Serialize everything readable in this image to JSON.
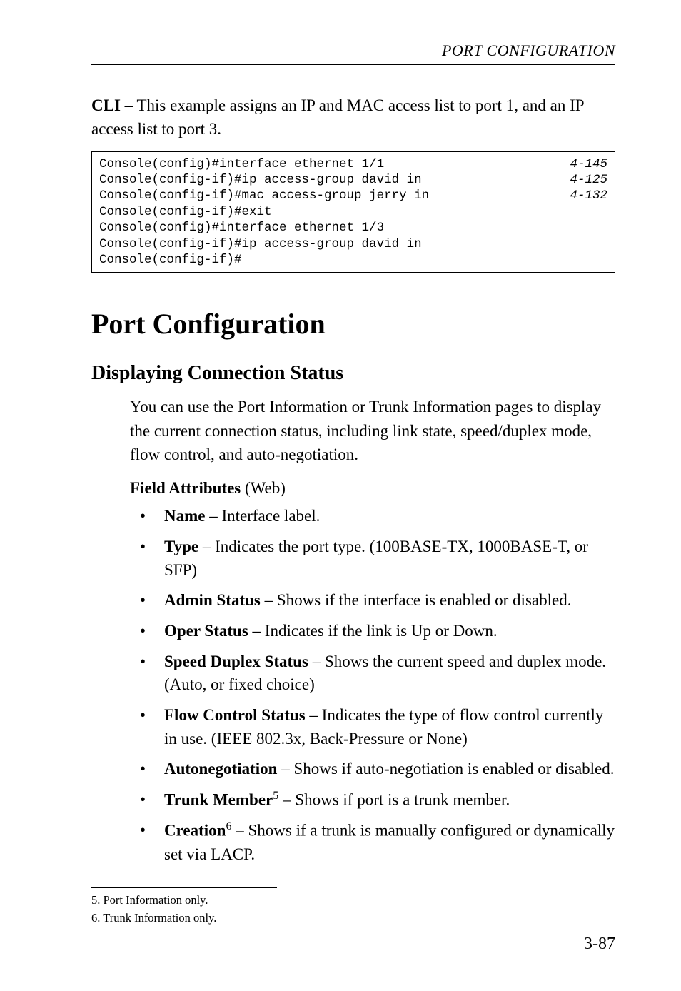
{
  "running_head": "PORT CONFIGURATION",
  "intro_para_prefix_bold": "CLI",
  "intro_para_rest": " – This example assigns an IP and MAC access list to port 1, and an IP access list to port 3.",
  "code": {
    "lines": [
      {
        "left": "Console(config)#interface ethernet 1/1",
        "right": "4-145"
      },
      {
        "left": "Console(config-if)#ip access-group david in",
        "right": "4-125"
      },
      {
        "left": "Console(config-if)#mac access-group jerry in",
        "right": "4-132"
      },
      {
        "left": "Console(config-if)#exit",
        "right": ""
      },
      {
        "left": "Console(config)#interface ethernet 1/3",
        "right": ""
      },
      {
        "left": "Console(config-if)#ip access-group david in",
        "right": ""
      },
      {
        "left": "Console(config-if)#",
        "right": ""
      }
    ]
  },
  "h1": "Port Configuration",
  "h2": "Displaying Connection Status",
  "sub_para": "You can use the Port Information or Trunk Information pages to display the current connection status, including link state, speed/duplex mode, flow control, and auto-negotiation.",
  "field_attr_bold": "Field Attributes",
  "field_attr_rest": " (Web)",
  "bullets": [
    {
      "term": "Name",
      "desc": " – Interface label."
    },
    {
      "term": "Type",
      "desc": " – Indicates the port type. (100BASE-TX, 1000BASE-T, or SFP)"
    },
    {
      "term": "Admin Status",
      "desc": " – Shows if the interface is enabled or disabled."
    },
    {
      "term": "Oper Status",
      "desc": " – Indicates if the link is Up or Down."
    },
    {
      "term": "Speed Duplex Status",
      "desc": " – Shows the current speed and duplex mode. (Auto, or fixed choice)"
    },
    {
      "term": "Flow Control Status",
      "desc": " – Indicates the type of flow control currently in use. (IEEE 802.3x, Back-Pressure or None)"
    },
    {
      "term": "Autonegotiation",
      "desc": " – Shows if auto-negotiation is enabled or disabled."
    },
    {
      "term": "Trunk Member",
      "sup": "5",
      "desc": " – Shows if port is a trunk member."
    },
    {
      "term": "Creation",
      "sup": "6",
      "desc": " – Shows if a trunk is manually configured or dynamically set via LACP."
    }
  ],
  "footnotes": [
    "5. Port Information only.",
    "6. Trunk Information only."
  ],
  "page_number": "3-87"
}
